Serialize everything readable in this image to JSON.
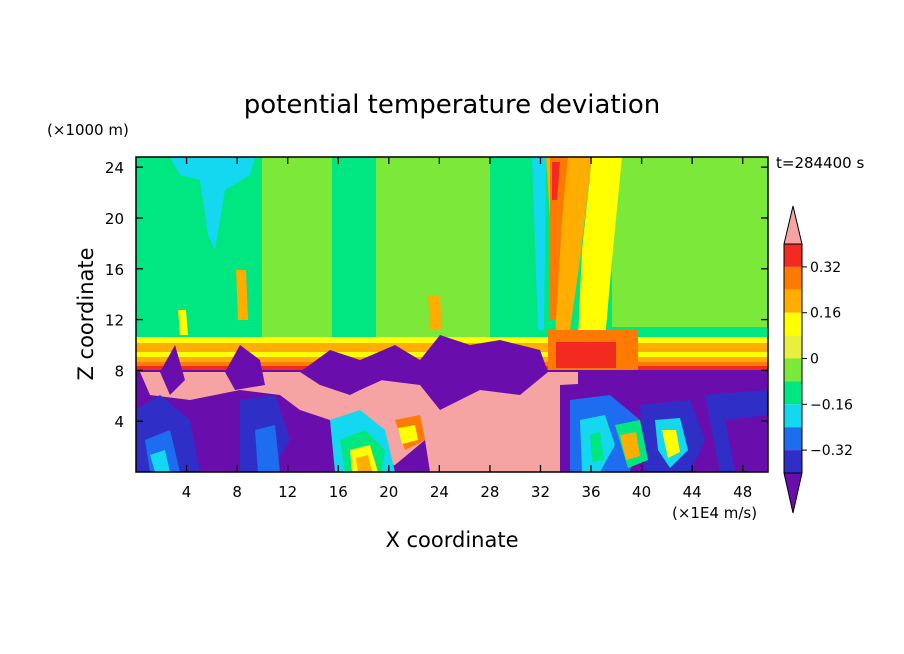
{
  "chart_data": {
    "type": "heatmap",
    "title": "potential temperature deviation",
    "xlabel": "X coordinate",
    "ylabel": "Z coordinate",
    "x_units": "(×1E4 m/s)",
    "y_units": "(×1000 m)",
    "time_label": "t=284400 s",
    "xlim": [
      0,
      50
    ],
    "ylim": [
      0,
      24.8
    ],
    "x_ticks": [
      4,
      8,
      12,
      16,
      20,
      24,
      28,
      32,
      36,
      40,
      44,
      48
    ],
    "y_ticks": [
      4,
      8,
      12,
      16,
      20,
      24
    ],
    "colorbar": {
      "levels": [
        -0.48,
        -0.4,
        -0.32,
        -0.24,
        -0.16,
        -0.08,
        0,
        0.08,
        0.16,
        0.24,
        0.32,
        0.4
      ],
      "tick_labels": [
        "0.32",
        "0.16",
        "0",
        "−0.16",
        "−0.32"
      ],
      "tick_values": [
        0.32,
        0.16,
        0,
        -0.16,
        -0.32
      ],
      "colors": [
        "#6a0dad",
        "#2f2fc8",
        "#1e6cf0",
        "#14d8f0",
        "#00e680",
        "#7be83a",
        "#e8ef3c",
        "#ffff00",
        "#ffae00",
        "#ff7a00",
        "#f22a20",
        "#f5a3a3"
      ],
      "extend": "both"
    },
    "grid": false
  }
}
